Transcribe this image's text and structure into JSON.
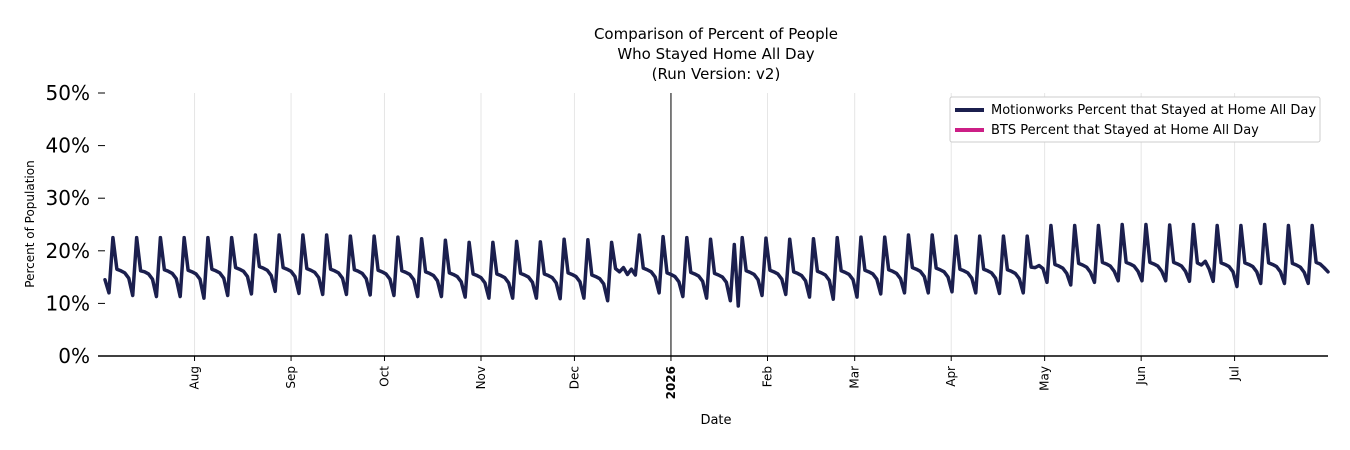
{
  "chart_data": {
    "type": "line",
    "title_lines": [
      "Comparison of Percent of People",
      "Who Stayed Home All Day",
      "(Run Version: v2)"
    ],
    "xlabel": "Date",
    "ylabel": "Percent of Population",
    "ylim": [
      0,
      50
    ],
    "yticks": [
      "0%",
      "10%",
      "20%",
      "30%",
      "40%",
      "50%"
    ],
    "xlim": [
      "2025-07-01",
      "2026-07-31"
    ],
    "x_ticks": [
      {
        "date": "2025-08-01",
        "label": "Aug",
        "bold": false
      },
      {
        "date": "2025-09-01",
        "label": "Sep",
        "bold": false
      },
      {
        "date": "2025-10-01",
        "label": "Oct",
        "bold": false
      },
      {
        "date": "2025-11-01",
        "label": "Nov",
        "bold": false
      },
      {
        "date": "2025-12-01",
        "label": "Dec",
        "bold": false
      },
      {
        "date": "2026-01-01",
        "label": "2026",
        "bold": true
      },
      {
        "date": "2026-02-01",
        "label": "Feb",
        "bold": false
      },
      {
        "date": "2026-03-01",
        "label": "Mar",
        "bold": false
      },
      {
        "date": "2026-04-01",
        "label": "Apr",
        "bold": false
      },
      {
        "date": "2026-05-01",
        "label": "May",
        "bold": false
      },
      {
        "date": "2026-06-01",
        "label": "Jun",
        "bold": false
      },
      {
        "date": "2026-07-01",
        "label": "Jul",
        "bold": false
      }
    ],
    "reference_line_date": "2026-01-01",
    "grid": "vertical",
    "legend_position": "top-right",
    "series": [
      {
        "name": "Motionworks Percent that Stayed at Home All Day",
        "color": "#1b1f4e",
        "values": [
          14.5,
          12,
          22.5,
          16.5,
          16.2,
          15.8,
          14.8,
          11.5,
          22.5,
          16.2,
          16,
          15.6,
          14.6,
          11.3,
          22.5,
          16.4,
          16.1,
          15.7,
          14.7,
          11.3,
          22.5,
          16.3,
          16,
          15.6,
          14.6,
          11,
          22.5,
          16.5,
          16.2,
          15.8,
          14.8,
          11.5,
          22.5,
          16.8,
          16.5,
          16.1,
          15.1,
          11.8,
          23,
          17,
          16.7,
          16.3,
          15.3,
          12.3,
          23,
          16.8,
          16.5,
          16.1,
          15.1,
          11.9,
          23,
          16.6,
          16.3,
          15.9,
          14.9,
          11.7,
          23,
          16.5,
          16.2,
          15.8,
          14.8,
          11.7,
          22.8,
          16.4,
          16.1,
          15.7,
          14.7,
          11.6,
          22.8,
          16.3,
          16,
          15.6,
          14.6,
          11.5,
          22.6,
          16.2,
          15.9,
          15.5,
          14.5,
          11.3,
          22.3,
          16,
          15.7,
          15.3,
          14.3,
          11.3,
          22,
          15.8,
          15.5,
          15.1,
          14.1,
          11.2,
          21.6,
          15.6,
          15.3,
          14.9,
          13.9,
          11,
          21.6,
          15.6,
          15.3,
          14.9,
          13.9,
          11,
          21.8,
          15.7,
          15.4,
          15,
          14,
          11,
          21.7,
          15.6,
          15.3,
          14.9,
          13.9,
          10.9,
          22.2,
          15.8,
          15.5,
          15.1,
          14.1,
          11,
          22.1,
          15.4,
          15.1,
          14.7,
          13.7,
          10.5,
          21.6,
          16.6,
          16,
          16.8,
          15.5,
          16.5,
          15.4,
          23,
          16.7,
          16.4,
          16,
          15,
          12,
          22.7,
          15.8,
          15.5,
          15.1,
          14.1,
          11.3,
          22.5,
          15.9,
          15.6,
          15.2,
          14.2,
          11,
          22.2,
          15.7,
          15.4,
          15,
          14,
          10.5,
          21.2,
          9.5,
          22.5,
          16.2,
          15.9,
          15.5,
          14.5,
          11.5,
          22.4,
          16.3,
          16,
          15.6,
          14.6,
          11.7,
          22.2,
          16,
          15.7,
          15.3,
          14.3,
          11.2,
          22.3,
          16.1,
          15.8,
          15.4,
          14.4,
          10.8,
          22.5,
          16.2,
          15.9,
          15.5,
          14.5,
          11.2,
          22.6,
          16.3,
          16,
          15.6,
          14.6,
          11.8,
          22.6,
          16.4,
          16.1,
          15.7,
          14.7,
          12,
          23,
          16.8,
          16.5,
          16.1,
          15.1,
          12,
          23,
          16.7,
          16.4,
          16,
          15,
          12.2,
          22.8,
          16.5,
          16.2,
          15.8,
          14.8,
          12,
          22.8,
          16.5,
          16.2,
          15.8,
          14.8,
          11.9,
          22.8,
          16.4,
          16.1,
          15.7,
          14.7,
          12,
          22.8,
          16.9,
          16.8,
          17.2,
          16.6,
          14,
          24.8,
          17.4,
          17.1,
          16.7,
          15.7,
          13.5,
          24.8,
          17.6,
          17.3,
          16.9,
          15.9,
          14,
          24.8,
          17.8,
          17.5,
          17.1,
          16.1,
          14.3,
          25,
          17.8,
          17.5,
          17.1,
          16.1,
          14.3,
          25,
          17.8,
          17.5,
          17.1,
          16.1,
          14.3,
          24.9,
          17.8,
          17.5,
          17.1,
          16.1,
          14.2,
          25,
          17.7,
          17.3,
          18,
          16.5,
          14.2,
          24.8,
          17.7,
          17.4,
          17,
          16,
          13.2,
          24.8,
          17.7,
          17.4,
          17,
          16,
          13.8,
          25,
          17.7,
          17.4,
          17,
          16,
          13.8,
          24.8,
          17.6,
          17.3,
          16.9,
          15.9,
          13.8,
          24.8,
          17.8,
          17.5,
          16.8,
          16
        ]
      },
      {
        "name": "BTS Percent that Stayed at Home All Day",
        "color": "#cc1f86",
        "values": []
      }
    ]
  }
}
